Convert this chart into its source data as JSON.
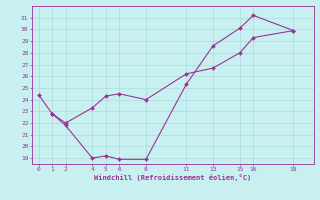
{
  "xlabel": "Windchill (Refroidissement éolien,°C)",
  "background_color": "#c8f0f0",
  "grid_color": "#b0dede",
  "line_color": "#993399",
  "xlim": [
    -0.5,
    20.5
  ],
  "ylim": [
    18.5,
    32.0
  ],
  "xticks": [
    0,
    1,
    2,
    4,
    5,
    6,
    8,
    11,
    13,
    15,
    16,
    19
  ],
  "yticks": [
    19,
    20,
    21,
    22,
    23,
    24,
    25,
    26,
    27,
    28,
    29,
    30,
    31
  ],
  "line1_x": [
    0,
    1,
    2,
    4,
    5,
    6,
    8,
    11,
    13,
    15,
    16,
    19
  ],
  "line1_y": [
    24.4,
    22.8,
    21.8,
    19.0,
    19.2,
    18.9,
    18.9,
    25.3,
    28.6,
    30.1,
    31.2,
    29.9
  ],
  "line2_x": [
    1,
    2,
    4,
    5,
    6,
    8,
    11,
    13,
    15,
    16,
    19
  ],
  "line2_y": [
    22.8,
    22.0,
    23.3,
    24.3,
    24.5,
    24.0,
    26.2,
    26.7,
    28.0,
    29.3,
    29.9
  ]
}
